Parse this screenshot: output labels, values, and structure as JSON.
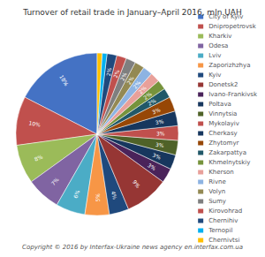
{
  "chart_data": {
    "type": "pie",
    "title": "Turnover of retail trade in January–April 2016, mln.UAH",
    "annotations": [
      "Copyright © 2016 by Interfax-Ukraine news agency en.interfax.com.ua"
    ],
    "categories": [
      "City of Kyiv",
      "Dnipropetrovsk",
      "Kharkiv",
      "Odesa",
      "Lviv",
      "Zaporizhzhya",
      "Kyiv",
      "Donetsk2",
      "Ivano-Frankivsk",
      "Poltava",
      "Vinnytsia",
      "Mykolayiv",
      "Cherkasy",
      "Zhytomyr",
      "Zakarpattya",
      "Khmelnytskiy",
      "Kherson",
      "Rivne",
      "Volyn",
      "Sumy",
      "Kirovohrad",
      "Chernihiv",
      "Ternopil",
      "Chernivtsi"
    ],
    "values": [
      18,
      10,
      8,
      7,
      6,
      5,
      4,
      9,
      3,
      3,
      3,
      3,
      3,
      3,
      2,
      2,
      2,
      2,
      2,
      2,
      2,
      2,
      1,
      1
    ],
    "value_labels": [
      "18%",
      "10%",
      "8%",
      "7%",
      "6%",
      "5%",
      "4%",
      "9%",
      "3%",
      "3%",
      "3%",
      "3%",
      "3%",
      "3%",
      "2%",
      "2%",
      "2%",
      "2%",
      "2%",
      "2%",
      "2%",
      "2%",
      null,
      null
    ],
    "colors": [
      "#4472C4",
      "#C0504D",
      "#9BBB59",
      "#8064A2",
      "#4BACC6",
      "#F79646",
      "#1F497D",
      "#963634",
      "#4A235A",
      "#17375E",
      "#4F6228",
      "#C0504D",
      "#17375E",
      "#974706",
      "#215868",
      "#76933C",
      "#E8A09A",
      "#8DB3E2",
      "#938953",
      "#7F7F7F",
      "#C0504D",
      "#1F497D",
      "#00B0F0",
      "#FFC000"
    ],
    "data_labels": true,
    "legend": "right"
  }
}
